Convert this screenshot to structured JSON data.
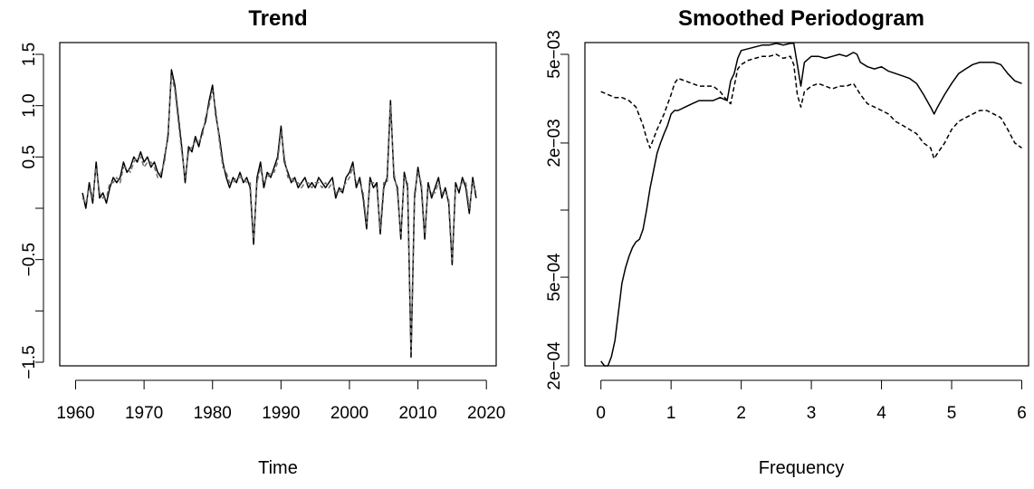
{
  "chart_data": [
    {
      "type": "line",
      "title": "Trend",
      "xlabel": "Time",
      "ylabel": "",
      "xlim": [
        1960,
        2020
      ],
      "ylim": [
        -1.5,
        1.5
      ],
      "x_ticks": [
        1960,
        1970,
        1980,
        1990,
        2000,
        2010,
        2020
      ],
      "y_ticks": [
        -1.5,
        -1.0,
        -0.5,
        0.0,
        0.5,
        1.0,
        1.5
      ],
      "y_tick_labels": [
        "−1.5",
        "",
        "−0.5",
        "",
        "0.5",
        "1.0",
        "1.5"
      ],
      "grid": false,
      "series": [
        {
          "line_style": "solid",
          "color": "#000000",
          "x": [
            1961.0,
            1961.5,
            1962.0,
            1962.5,
            1963.0,
            1963.5,
            1964.0,
            1964.5,
            1965.0,
            1965.5,
            1966.0,
            1966.5,
            1967.0,
            1967.5,
            1968.0,
            1968.5,
            1969.0,
            1969.5,
            1970.0,
            1970.5,
            1971.0,
            1971.5,
            1972.0,
            1972.5,
            1973.0,
            1973.5,
            1974.0,
            1974.5,
            1975.0,
            1975.5,
            1976.0,
            1976.5,
            1977.0,
            1977.5,
            1978.0,
            1978.5,
            1979.0,
            1979.5,
            1980.0,
            1980.5,
            1981.0,
            1981.5,
            1982.0,
            1982.5,
            1983.0,
            1983.5,
            1984.0,
            1984.5,
            1985.0,
            1985.5,
            1986.0,
            1986.5,
            1987.0,
            1987.5,
            1988.0,
            1988.5,
            1989.0,
            1989.5,
            1990.0,
            1990.5,
            1991.0,
            1991.5,
            1992.0,
            1992.5,
            1993.0,
            1993.5,
            1994.0,
            1994.5,
            1995.0,
            1995.5,
            1996.0,
            1996.5,
            1997.0,
            1997.5,
            1998.0,
            1998.5,
            1999.0,
            1999.5,
            2000.0,
            2000.5,
            2001.0,
            2001.5,
            2002.0,
            2002.5,
            2003.0,
            2003.5,
            2004.0,
            2004.5,
            2005.0,
            2005.5,
            2006.0,
            2006.5,
            2007.0,
            2007.5,
            2008.0,
            2008.5,
            2009.0,
            2009.5,
            2010.0,
            2010.5,
            2011.0,
            2011.5,
            2012.0,
            2012.5,
            2013.0,
            2013.5,
            2014.0,
            2014.5,
            2015.0,
            2015.5,
            2016.0,
            2016.5,
            2017.0,
            2017.5,
            2018.0,
            2018.5
          ],
          "values": [
            0.15,
            0.0,
            0.25,
            0.05,
            0.45,
            0.1,
            0.15,
            0.05,
            0.2,
            0.3,
            0.25,
            0.3,
            0.45,
            0.35,
            0.4,
            0.5,
            0.45,
            0.55,
            0.45,
            0.5,
            0.4,
            0.45,
            0.35,
            0.3,
            0.5,
            0.7,
            1.35,
            1.2,
            0.9,
            0.6,
            0.25,
            0.6,
            0.55,
            0.7,
            0.6,
            0.75,
            0.85,
            1.05,
            1.2,
            0.9,
            0.7,
            0.45,
            0.3,
            0.2,
            0.3,
            0.25,
            0.35,
            0.25,
            0.3,
            0.2,
            -0.35,
            0.3,
            0.45,
            0.2,
            0.35,
            0.3,
            0.4,
            0.5,
            0.8,
            0.45,
            0.35,
            0.25,
            0.3,
            0.2,
            0.25,
            0.3,
            0.2,
            0.25,
            0.2,
            0.3,
            0.25,
            0.2,
            0.25,
            0.3,
            0.1,
            0.2,
            0.15,
            0.3,
            0.35,
            0.45,
            0.2,
            0.3,
            0.1,
            -0.2,
            0.3,
            0.2,
            0.25,
            -0.25,
            0.2,
            0.3,
            1.05,
            0.3,
            0.2,
            -0.3,
            0.35,
            0.2,
            -1.45,
            0.1,
            0.4,
            0.2,
            -0.3,
            0.25,
            0.1,
            0.2,
            0.3,
            0.1,
            0.2,
            0.05,
            -0.55,
            0.25,
            0.15,
            0.3,
            0.2,
            -0.05,
            0.3,
            0.1
          ]
        },
        {
          "line_style": "dashed",
          "color": "#6e6e6e",
          "x": [
            1961.0,
            1961.5,
            1962.0,
            1962.5,
            1963.0,
            1963.5,
            1964.0,
            1964.5,
            1965.0,
            1965.5,
            1966.0,
            1966.5,
            1967.0,
            1967.5,
            1968.0,
            1968.5,
            1969.0,
            1969.5,
            1970.0,
            1970.5,
            1971.0,
            1971.5,
            1972.0,
            1972.5,
            1973.0,
            1973.5,
            1974.0,
            1974.5,
            1975.0,
            1975.5,
            1976.0,
            1976.5,
            1977.0,
            1977.5,
            1978.0,
            1978.5,
            1979.0,
            1979.5,
            1980.0,
            1980.5,
            1981.0,
            1981.5,
            1982.0,
            1982.5,
            1983.0,
            1983.5,
            1984.0,
            1984.5,
            1985.0,
            1985.5,
            1986.0,
            1986.5,
            1987.0,
            1987.5,
            1988.0,
            1988.5,
            1989.0,
            1989.5,
            1990.0,
            1990.5,
            1991.0,
            1991.5,
            1992.0,
            1992.5,
            1993.0,
            1993.5,
            1994.0,
            1994.5,
            1995.0,
            1995.5,
            1996.0,
            1996.5,
            1997.0,
            1997.5,
            1998.0,
            1998.5,
            1999.0,
            1999.5,
            2000.0,
            2000.5,
            2001.0,
            2001.5,
            2002.0,
            2002.5,
            2003.0,
            2003.5,
            2004.0,
            2004.5,
            2005.0,
            2005.5,
            2006.0,
            2006.5,
            2007.0,
            2007.5,
            2008.0,
            2008.5,
            2009.0,
            2009.5,
            2010.0,
            2010.5,
            2011.0,
            2011.5,
            2012.0,
            2012.5,
            2013.0,
            2013.5,
            2014.0,
            2014.5,
            2015.0,
            2015.5,
            2016.0,
            2016.5,
            2017.0,
            2017.5,
            2018.0,
            2018.5
          ],
          "values": [
            0.1,
            0.05,
            0.2,
            0.1,
            0.4,
            0.15,
            0.1,
            0.1,
            0.25,
            0.25,
            0.3,
            0.25,
            0.4,
            0.4,
            0.35,
            0.45,
            0.5,
            0.5,
            0.4,
            0.45,
            0.45,
            0.4,
            0.3,
            0.35,
            0.45,
            0.75,
            1.3,
            1.15,
            0.85,
            0.55,
            0.3,
            0.55,
            0.6,
            0.65,
            0.65,
            0.7,
            0.9,
            1.0,
            1.15,
            0.95,
            0.65,
            0.4,
            0.35,
            0.25,
            0.25,
            0.3,
            0.3,
            0.3,
            0.25,
            0.25,
            -0.3,
            0.25,
            0.4,
            0.25,
            0.3,
            0.35,
            0.35,
            0.45,
            0.75,
            0.5,
            0.3,
            0.3,
            0.25,
            0.25,
            0.2,
            0.25,
            0.25,
            0.2,
            0.25,
            0.25,
            0.2,
            0.25,
            0.2,
            0.25,
            0.15,
            0.15,
            0.2,
            0.25,
            0.3,
            0.4,
            0.25,
            0.25,
            0.15,
            -0.15,
            0.25,
            0.25,
            0.2,
            -0.2,
            0.25,
            0.25,
            1.0,
            0.35,
            0.15,
            -0.25,
            0.3,
            0.25,
            -1.4,
            0.15,
            0.35,
            0.25,
            -0.25,
            0.2,
            0.15,
            0.15,
            0.25,
            0.15,
            0.15,
            0.1,
            -0.5,
            0.2,
            0.2,
            0.25,
            0.25,
            0.0,
            0.25,
            0.15
          ]
        }
      ]
    },
    {
      "type": "line",
      "title": "Smoothed Periodogram",
      "xlabel": "Frequency",
      "ylabel": "",
      "y_scale": "log",
      "xlim": [
        0,
        6
      ],
      "ylim": [
        0.0002,
        0.005
      ],
      "x_ticks": [
        0,
        1,
        2,
        3,
        4,
        5,
        6
      ],
      "y_ticks": [
        0.0002,
        0.0005,
        0.001,
        0.002,
        0.005
      ],
      "y_tick_labels": [
        "2e−04",
        "5e−04",
        "",
        "2e−03",
        "5e−03"
      ],
      "grid": false,
      "series": [
        {
          "line_style": "solid",
          "color": "#000000",
          "x": [
            0.0,
            0.05,
            0.1,
            0.15,
            0.2,
            0.25,
            0.3,
            0.35,
            0.4,
            0.45,
            0.5,
            0.55,
            0.6,
            0.65,
            0.7,
            0.75,
            0.8,
            0.85,
            0.9,
            0.95,
            1.0,
            1.05,
            1.1,
            1.2,
            1.3,
            1.4,
            1.5,
            1.6,
            1.7,
            1.8,
            1.85,
            1.9,
            1.95,
            2.0,
            2.1,
            2.2,
            2.3,
            2.4,
            2.5,
            2.6,
            2.7,
            2.75,
            2.8,
            2.85,
            2.9,
            3.0,
            3.1,
            3.2,
            3.3,
            3.4,
            3.5,
            3.6,
            3.65,
            3.7,
            3.8,
            3.9,
            4.0,
            4.1,
            4.2,
            4.3,
            4.4,
            4.5,
            4.6,
            4.7,
            4.75,
            4.8,
            4.9,
            5.0,
            5.1,
            5.2,
            5.3,
            5.4,
            5.5,
            5.6,
            5.7,
            5.8,
            5.9,
            6.0
          ],
          "values": [
            0.00021,
            0.0002,
            0.0002,
            0.00022,
            0.00026,
            0.00035,
            0.00047,
            0.00055,
            0.00062,
            0.00068,
            0.00072,
            0.00074,
            0.00082,
            0.001,
            0.00125,
            0.0015,
            0.0018,
            0.002,
            0.0022,
            0.0024,
            0.0027,
            0.0028,
            0.0028,
            0.0029,
            0.003,
            0.0031,
            0.0031,
            0.0031,
            0.0032,
            0.0031,
            0.0038,
            0.0041,
            0.0048,
            0.0052,
            0.0053,
            0.0054,
            0.0055,
            0.0055,
            0.0056,
            0.0055,
            0.0056,
            0.0056,
            0.0045,
            0.0036,
            0.0046,
            0.0049,
            0.0049,
            0.0048,
            0.0049,
            0.005,
            0.0049,
            0.0051,
            0.005,
            0.0046,
            0.0044,
            0.0043,
            0.0044,
            0.0042,
            0.0041,
            0.004,
            0.0039,
            0.0037,
            0.0033,
            0.0029,
            0.0027,
            0.0029,
            0.0033,
            0.0037,
            0.0041,
            0.0043,
            0.0045,
            0.0046,
            0.0046,
            0.0046,
            0.0045,
            0.0041,
            0.0038,
            0.0037
          ]
        },
        {
          "line_style": "dashed",
          "color": "#000000",
          "x": [
            0.0,
            0.1,
            0.2,
            0.3,
            0.4,
            0.5,
            0.6,
            0.65,
            0.7,
            0.8,
            0.9,
            1.0,
            1.05,
            1.1,
            1.2,
            1.3,
            1.4,
            1.5,
            1.6,
            1.7,
            1.8,
            1.85,
            1.9,
            1.95,
            2.0,
            2.1,
            2.2,
            2.3,
            2.4,
            2.5,
            2.6,
            2.7,
            2.75,
            2.8,
            2.85,
            2.9,
            3.0,
            3.1,
            3.2,
            3.3,
            3.4,
            3.5,
            3.6,
            3.7,
            3.8,
            3.9,
            4.0,
            4.1,
            4.2,
            4.3,
            4.4,
            4.5,
            4.6,
            4.7,
            4.75,
            4.8,
            4.9,
            5.0,
            5.1,
            5.2,
            5.3,
            5.4,
            5.5,
            5.6,
            5.7,
            5.8,
            5.9,
            6.0
          ],
          "values": [
            0.0034,
            0.0033,
            0.0032,
            0.0032,
            0.0031,
            0.0029,
            0.0024,
            0.0021,
            0.0019,
            0.0023,
            0.0027,
            0.0033,
            0.0037,
            0.0039,
            0.0038,
            0.0037,
            0.0036,
            0.0036,
            0.0036,
            0.0034,
            0.0031,
            0.003,
            0.0036,
            0.0043,
            0.0045,
            0.0047,
            0.0048,
            0.0049,
            0.0049,
            0.005,
            0.0048,
            0.0049,
            0.0045,
            0.0033,
            0.0029,
            0.0034,
            0.0036,
            0.0037,
            0.0036,
            0.0035,
            0.0036,
            0.0036,
            0.0037,
            0.0033,
            0.003,
            0.0029,
            0.0028,
            0.0027,
            0.0025,
            0.0024,
            0.0023,
            0.0022,
            0.002,
            0.0019,
            0.0017,
            0.0018,
            0.002,
            0.0023,
            0.0025,
            0.0026,
            0.0027,
            0.0028,
            0.0028,
            0.0027,
            0.0026,
            0.0023,
            0.002,
            0.0019
          ]
        }
      ]
    }
  ]
}
